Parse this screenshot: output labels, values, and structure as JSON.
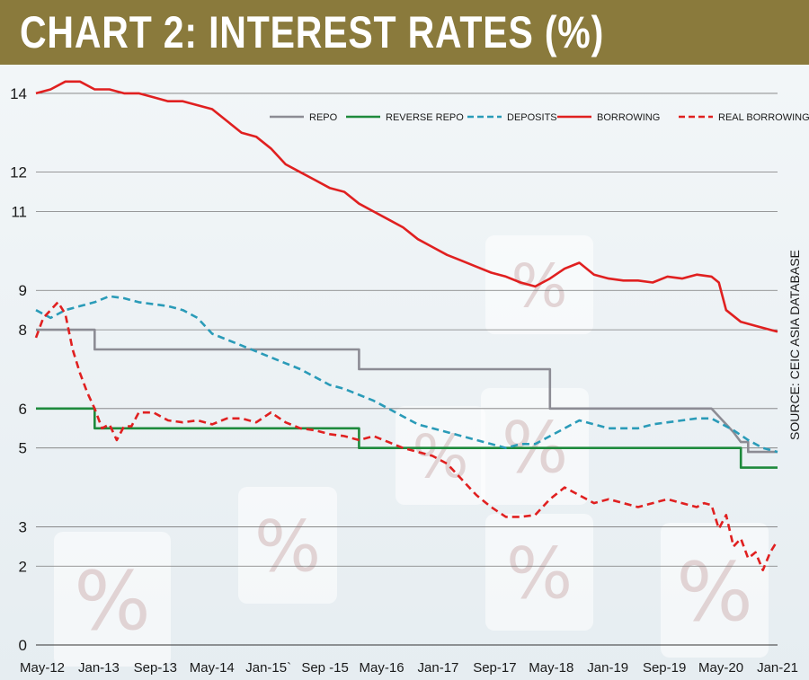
{
  "title": "CHART 2: INTEREST RATES (%)",
  "source": "SOURCE: CEIC ASIA DATABASE",
  "colors": {
    "title_bar": "#8a7a3c",
    "repo": "#8c8c94",
    "reverse_repo": "#1e8a3c",
    "deposits": "#2a9bb8",
    "borrowing": "#e02020",
    "real_borrowing": "#e02020"
  },
  "chart_data": {
    "type": "line",
    "x_tick_labels": [
      "May-12",
      "Jan-13",
      "Sep-13",
      "May-14",
      "Jan-15`",
      "Sep -15",
      "May-16",
      "Jan-17",
      "Sep-17",
      "May-18",
      "Jan-19",
      "Sep-19",
      "May-20",
      "Jan-21"
    ],
    "y_tick_labels": [
      "0",
      "2",
      "3",
      "5",
      "6",
      "8",
      "9",
      "11",
      "12",
      "14"
    ],
    "y_tick_values": [
      0,
      2,
      3,
      5,
      6,
      8,
      9,
      11,
      12,
      14
    ],
    "ylim": [
      0,
      14.5
    ],
    "legend_position": "top-right",
    "grid": true,
    "series": [
      {
        "name": "REPO",
        "style": "solid",
        "color_key": "repo",
        "points": [
          [
            0,
            8.0
          ],
          [
            8,
            8.0
          ],
          [
            8,
            7.5
          ],
          [
            44,
            7.5
          ],
          [
            44,
            7.0
          ],
          [
            70,
            7.0
          ],
          [
            70,
            6.0
          ],
          [
            92,
            6.0
          ],
          [
            92,
            6.0
          ],
          [
            95,
            5.4
          ],
          [
            96,
            5.15
          ],
          [
            97,
            5.15
          ],
          [
            97,
            4.9
          ],
          [
            101,
            4.9
          ]
        ]
      },
      {
        "name": "REVERSE REPO",
        "style": "solid",
        "color_key": "reverse_repo",
        "points": [
          [
            0,
            6.0
          ],
          [
            8,
            6.0
          ],
          [
            8,
            5.5
          ],
          [
            44,
            5.5
          ],
          [
            44,
            5.0
          ],
          [
            96,
            5.0
          ],
          [
            96,
            4.5
          ],
          [
            101,
            4.5
          ]
        ]
      },
      {
        "name": "DEPOSITS",
        "style": "dashed",
        "color_key": "deposits",
        "points": [
          [
            0,
            8.5
          ],
          [
            2,
            8.3
          ],
          [
            4,
            8.5
          ],
          [
            6,
            8.6
          ],
          [
            8,
            8.7
          ],
          [
            10,
            8.85
          ],
          [
            12,
            8.8
          ],
          [
            14,
            8.7
          ],
          [
            16,
            8.65
          ],
          [
            18,
            8.6
          ],
          [
            20,
            8.5
          ],
          [
            22,
            8.3
          ],
          [
            24,
            7.9
          ],
          [
            26,
            7.75
          ],
          [
            28,
            7.6
          ],
          [
            30,
            7.45
          ],
          [
            32,
            7.3
          ],
          [
            34,
            7.15
          ],
          [
            36,
            7.0
          ],
          [
            38,
            6.8
          ],
          [
            40,
            6.6
          ],
          [
            42,
            6.5
          ],
          [
            44,
            6.35
          ],
          [
            46,
            6.2
          ],
          [
            48,
            6.0
          ],
          [
            50,
            5.8
          ],
          [
            52,
            5.6
          ],
          [
            54,
            5.5
          ],
          [
            56,
            5.4
          ],
          [
            58,
            5.3
          ],
          [
            60,
            5.2
          ],
          [
            62,
            5.1
          ],
          [
            64,
            5.0
          ],
          [
            66,
            5.1
          ],
          [
            68,
            5.1
          ],
          [
            70,
            5.3
          ],
          [
            72,
            5.5
          ],
          [
            74,
            5.7
          ],
          [
            76,
            5.6
          ],
          [
            78,
            5.5
          ],
          [
            80,
            5.5
          ],
          [
            82,
            5.5
          ],
          [
            84,
            5.6
          ],
          [
            86,
            5.65
          ],
          [
            88,
            5.7
          ],
          [
            90,
            5.75
          ],
          [
            92,
            5.75
          ],
          [
            93,
            5.65
          ],
          [
            95,
            5.45
          ],
          [
            97,
            5.2
          ],
          [
            99,
            5.0
          ],
          [
            101,
            4.9
          ]
        ]
      },
      {
        "name": "BORROWING",
        "style": "solid",
        "color_key": "borrowing",
        "points": [
          [
            0,
            14.0
          ],
          [
            2,
            14.1
          ],
          [
            4,
            14.3
          ],
          [
            6,
            14.3
          ],
          [
            8,
            14.1
          ],
          [
            10,
            14.1
          ],
          [
            12,
            14.0
          ],
          [
            14,
            14.0
          ],
          [
            16,
            13.9
          ],
          [
            18,
            13.8
          ],
          [
            20,
            13.8
          ],
          [
            22,
            13.7
          ],
          [
            24,
            13.6
          ],
          [
            26,
            13.3
          ],
          [
            28,
            13.0
          ],
          [
            30,
            12.9
          ],
          [
            32,
            12.6
          ],
          [
            34,
            12.2
          ],
          [
            36,
            12.0
          ],
          [
            38,
            11.8
          ],
          [
            40,
            11.6
          ],
          [
            42,
            11.5
          ],
          [
            44,
            11.2
          ],
          [
            46,
            11.0
          ],
          [
            48,
            10.8
          ],
          [
            50,
            10.6
          ],
          [
            52,
            10.3
          ],
          [
            54,
            10.1
          ],
          [
            56,
            9.9
          ],
          [
            58,
            9.75
          ],
          [
            60,
            9.6
          ],
          [
            62,
            9.45
          ],
          [
            64,
            9.35
          ],
          [
            66,
            9.2
          ],
          [
            68,
            9.1
          ],
          [
            70,
            9.3
          ],
          [
            72,
            9.55
          ],
          [
            74,
            9.7
          ],
          [
            76,
            9.4
          ],
          [
            78,
            9.3
          ],
          [
            80,
            9.25
          ],
          [
            82,
            9.25
          ],
          [
            84,
            9.2
          ],
          [
            86,
            9.35
          ],
          [
            88,
            9.3
          ],
          [
            90,
            9.4
          ],
          [
            92,
            9.35
          ],
          [
            93,
            9.2
          ],
          [
            94,
            8.5
          ],
          [
            96,
            8.2
          ],
          [
            98,
            8.1
          ],
          [
            100,
            8.0
          ],
          [
            101,
            7.95
          ]
        ]
      },
      {
        "name": "REAL BORROWING",
        "style": "dashed",
        "color_key": "real_borrowing",
        "points": [
          [
            0,
            7.8
          ],
          [
            1,
            8.3
          ],
          [
            2,
            8.5
          ],
          [
            3,
            8.7
          ],
          [
            4,
            8.4
          ],
          [
            5,
            7.5
          ],
          [
            6,
            6.9
          ],
          [
            7,
            6.4
          ],
          [
            8,
            6.0
          ],
          [
            9,
            5.5
          ],
          [
            10,
            5.6
          ],
          [
            11,
            5.2
          ],
          [
            12,
            5.55
          ],
          [
            13,
            5.55
          ],
          [
            14,
            5.9
          ],
          [
            16,
            5.9
          ],
          [
            18,
            5.7
          ],
          [
            20,
            5.65
          ],
          [
            22,
            5.7
          ],
          [
            24,
            5.6
          ],
          [
            26,
            5.75
          ],
          [
            28,
            5.75
          ],
          [
            30,
            5.65
          ],
          [
            32,
            5.9
          ],
          [
            34,
            5.65
          ],
          [
            36,
            5.5
          ],
          [
            38,
            5.45
          ],
          [
            40,
            5.35
          ],
          [
            42,
            5.3
          ],
          [
            44,
            5.2
          ],
          [
            46,
            5.3
          ],
          [
            48,
            5.15
          ],
          [
            50,
            5.0
          ],
          [
            52,
            4.9
          ],
          [
            54,
            4.8
          ],
          [
            56,
            4.6
          ],
          [
            58,
            4.2
          ],
          [
            60,
            3.8
          ],
          [
            62,
            3.5
          ],
          [
            64,
            3.25
          ],
          [
            66,
            3.25
          ],
          [
            68,
            3.3
          ],
          [
            70,
            3.7
          ],
          [
            72,
            4.0
          ],
          [
            74,
            3.8
          ],
          [
            76,
            3.6
          ],
          [
            78,
            3.7
          ],
          [
            80,
            3.6
          ],
          [
            82,
            3.5
          ],
          [
            84,
            3.6
          ],
          [
            86,
            3.7
          ],
          [
            88,
            3.6
          ],
          [
            90,
            3.5
          ],
          [
            91,
            3.6
          ],
          [
            92,
            3.55
          ],
          [
            93,
            2.95
          ],
          [
            94,
            3.3
          ],
          [
            95,
            2.5
          ],
          [
            96,
            2.7
          ],
          [
            97,
            2.2
          ],
          [
            98,
            2.35
          ],
          [
            99,
            1.9
          ],
          [
            100,
            2.35
          ],
          [
            101,
            2.65
          ]
        ]
      }
    ]
  }
}
